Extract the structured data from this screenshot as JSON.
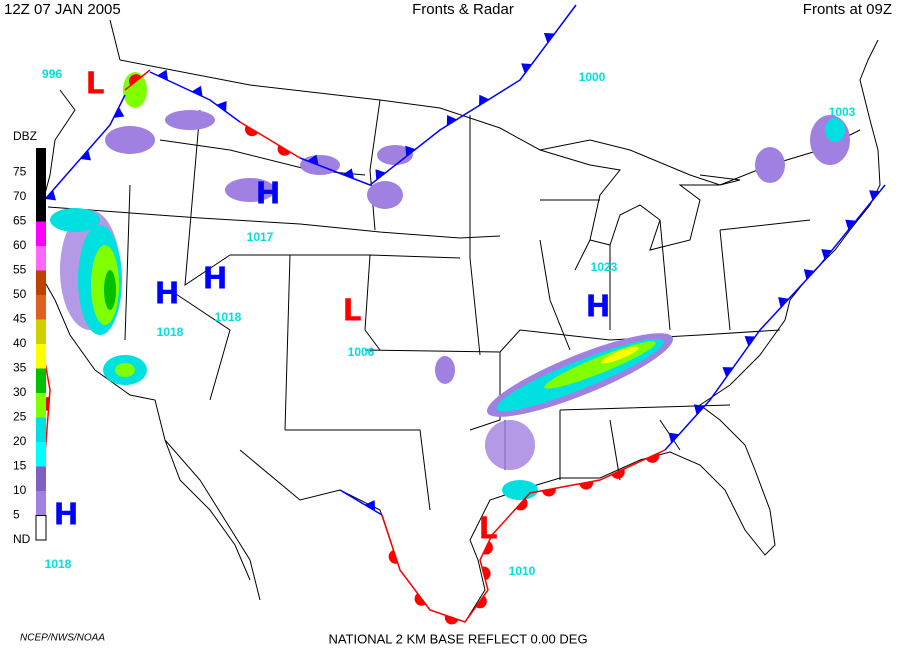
{
  "header": {
    "left": "12Z  07 JAN  2005",
    "center": "Fronts & Radar",
    "right": "Fronts at 09Z"
  },
  "legend": {
    "title": "DBZ",
    "levels": [
      {
        "label": "75",
        "color": "#000000"
      },
      {
        "label": "70",
        "color": "#000000"
      },
      {
        "label": "65",
        "color": "#000000"
      },
      {
        "label": "60",
        "color": "#ff00ff"
      },
      {
        "label": "55",
        "color": "#ff66ff"
      },
      {
        "label": "50",
        "color": "#c04000"
      },
      {
        "label": "45",
        "color": "#e06020"
      },
      {
        "label": "40",
        "color": "#d0d000"
      },
      {
        "label": "35",
        "color": "#ffff00"
      },
      {
        "label": "30",
        "color": "#00c000"
      },
      {
        "label": "25",
        "color": "#80ff00"
      },
      {
        "label": "20",
        "color": "#00e0e0"
      },
      {
        "label": "15",
        "color": "#00ffff"
      },
      {
        "label": "10",
        "color": "#8060c0"
      },
      {
        "label": "5",
        "color": "#a080e0"
      },
      {
        "label": "ND",
        "color": "#ffffff"
      }
    ]
  },
  "pressure_centers": [
    {
      "symbol": "L",
      "pressure": "996"
    },
    {
      "symbol": "H",
      "pressure": "1017"
    },
    {
      "symbol": "H",
      "pressure": "1018"
    },
    {
      "symbol": "H",
      "pressure": "1018"
    },
    {
      "symbol": "L",
      "pressure": "1006"
    },
    {
      "symbol": "H",
      "pressure": "1023"
    },
    {
      "symbol": "H",
      "pressure": "1018"
    },
    {
      "symbol": "L",
      "pressure": "1010"
    }
  ],
  "other_pressures": [
    "1000",
    "1003"
  ],
  "footer": {
    "credit": "NCEP/NWS/NOAA",
    "product": "NATIONAL 2 KM BASE REFLECT 0.00 DEG"
  }
}
